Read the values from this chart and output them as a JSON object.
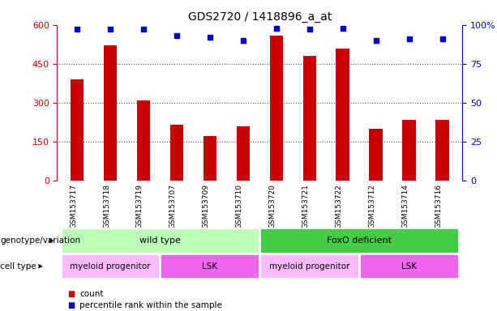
{
  "title": "GDS2720 / 1418896_a_at",
  "samples": [
    "GSM153717",
    "GSM153718",
    "GSM153719",
    "GSM153707",
    "GSM153709",
    "GSM153710",
    "GSM153720",
    "GSM153721",
    "GSM153722",
    "GSM153712",
    "GSM153714",
    "GSM153716"
  ],
  "counts": [
    390,
    520,
    310,
    215,
    170,
    210,
    560,
    480,
    510,
    200,
    235,
    235
  ],
  "percentile_ranks": [
    97,
    97,
    97,
    93,
    92,
    90,
    98,
    97,
    98,
    90,
    91,
    91
  ],
  "bar_color": "#cc0000",
  "dot_color": "#0000cc",
  "ylim_left": [
    0,
    600
  ],
  "ylim_right": [
    0,
    100
  ],
  "yticks_left": [
    0,
    150,
    300,
    450,
    600
  ],
  "ytick_labels_left": [
    "0",
    "150",
    "300",
    "450",
    "600"
  ],
  "yticks_right": [
    0,
    25,
    50,
    75,
    100
  ],
  "ytick_labels_right": [
    "0",
    "25",
    "50",
    "75",
    "100%"
  ],
  "genotype_groups": [
    {
      "label": "wild type",
      "start": 0,
      "end": 6,
      "color": "#bbffbb"
    },
    {
      "label": "FoxO deficient",
      "start": 6,
      "end": 12,
      "color": "#44cc44"
    }
  ],
  "cell_type_groups": [
    {
      "label": "myeloid progenitor",
      "start": 0,
      "end": 3,
      "color": "#ffbbff"
    },
    {
      "label": "LSK",
      "start": 3,
      "end": 6,
      "color": "#ee66ee"
    },
    {
      "label": "myeloid progenitor",
      "start": 6,
      "end": 9,
      "color": "#ffbbff"
    },
    {
      "label": "LSK",
      "start": 9,
      "end": 12,
      "color": "#ee66ee"
    }
  ],
  "legend_count_color": "#cc0000",
  "legend_dot_color": "#0000cc",
  "genotype_label": "genotype/variation",
  "cell_type_label": "cell type",
  "legend_count_text": "count",
  "legend_dot_text": "percentile rank within the sample",
  "bg_color": "#ffffff",
  "tick_label_area_color": "#cccccc",
  "grid_color": "#555555",
  "bar_width": 0.4
}
